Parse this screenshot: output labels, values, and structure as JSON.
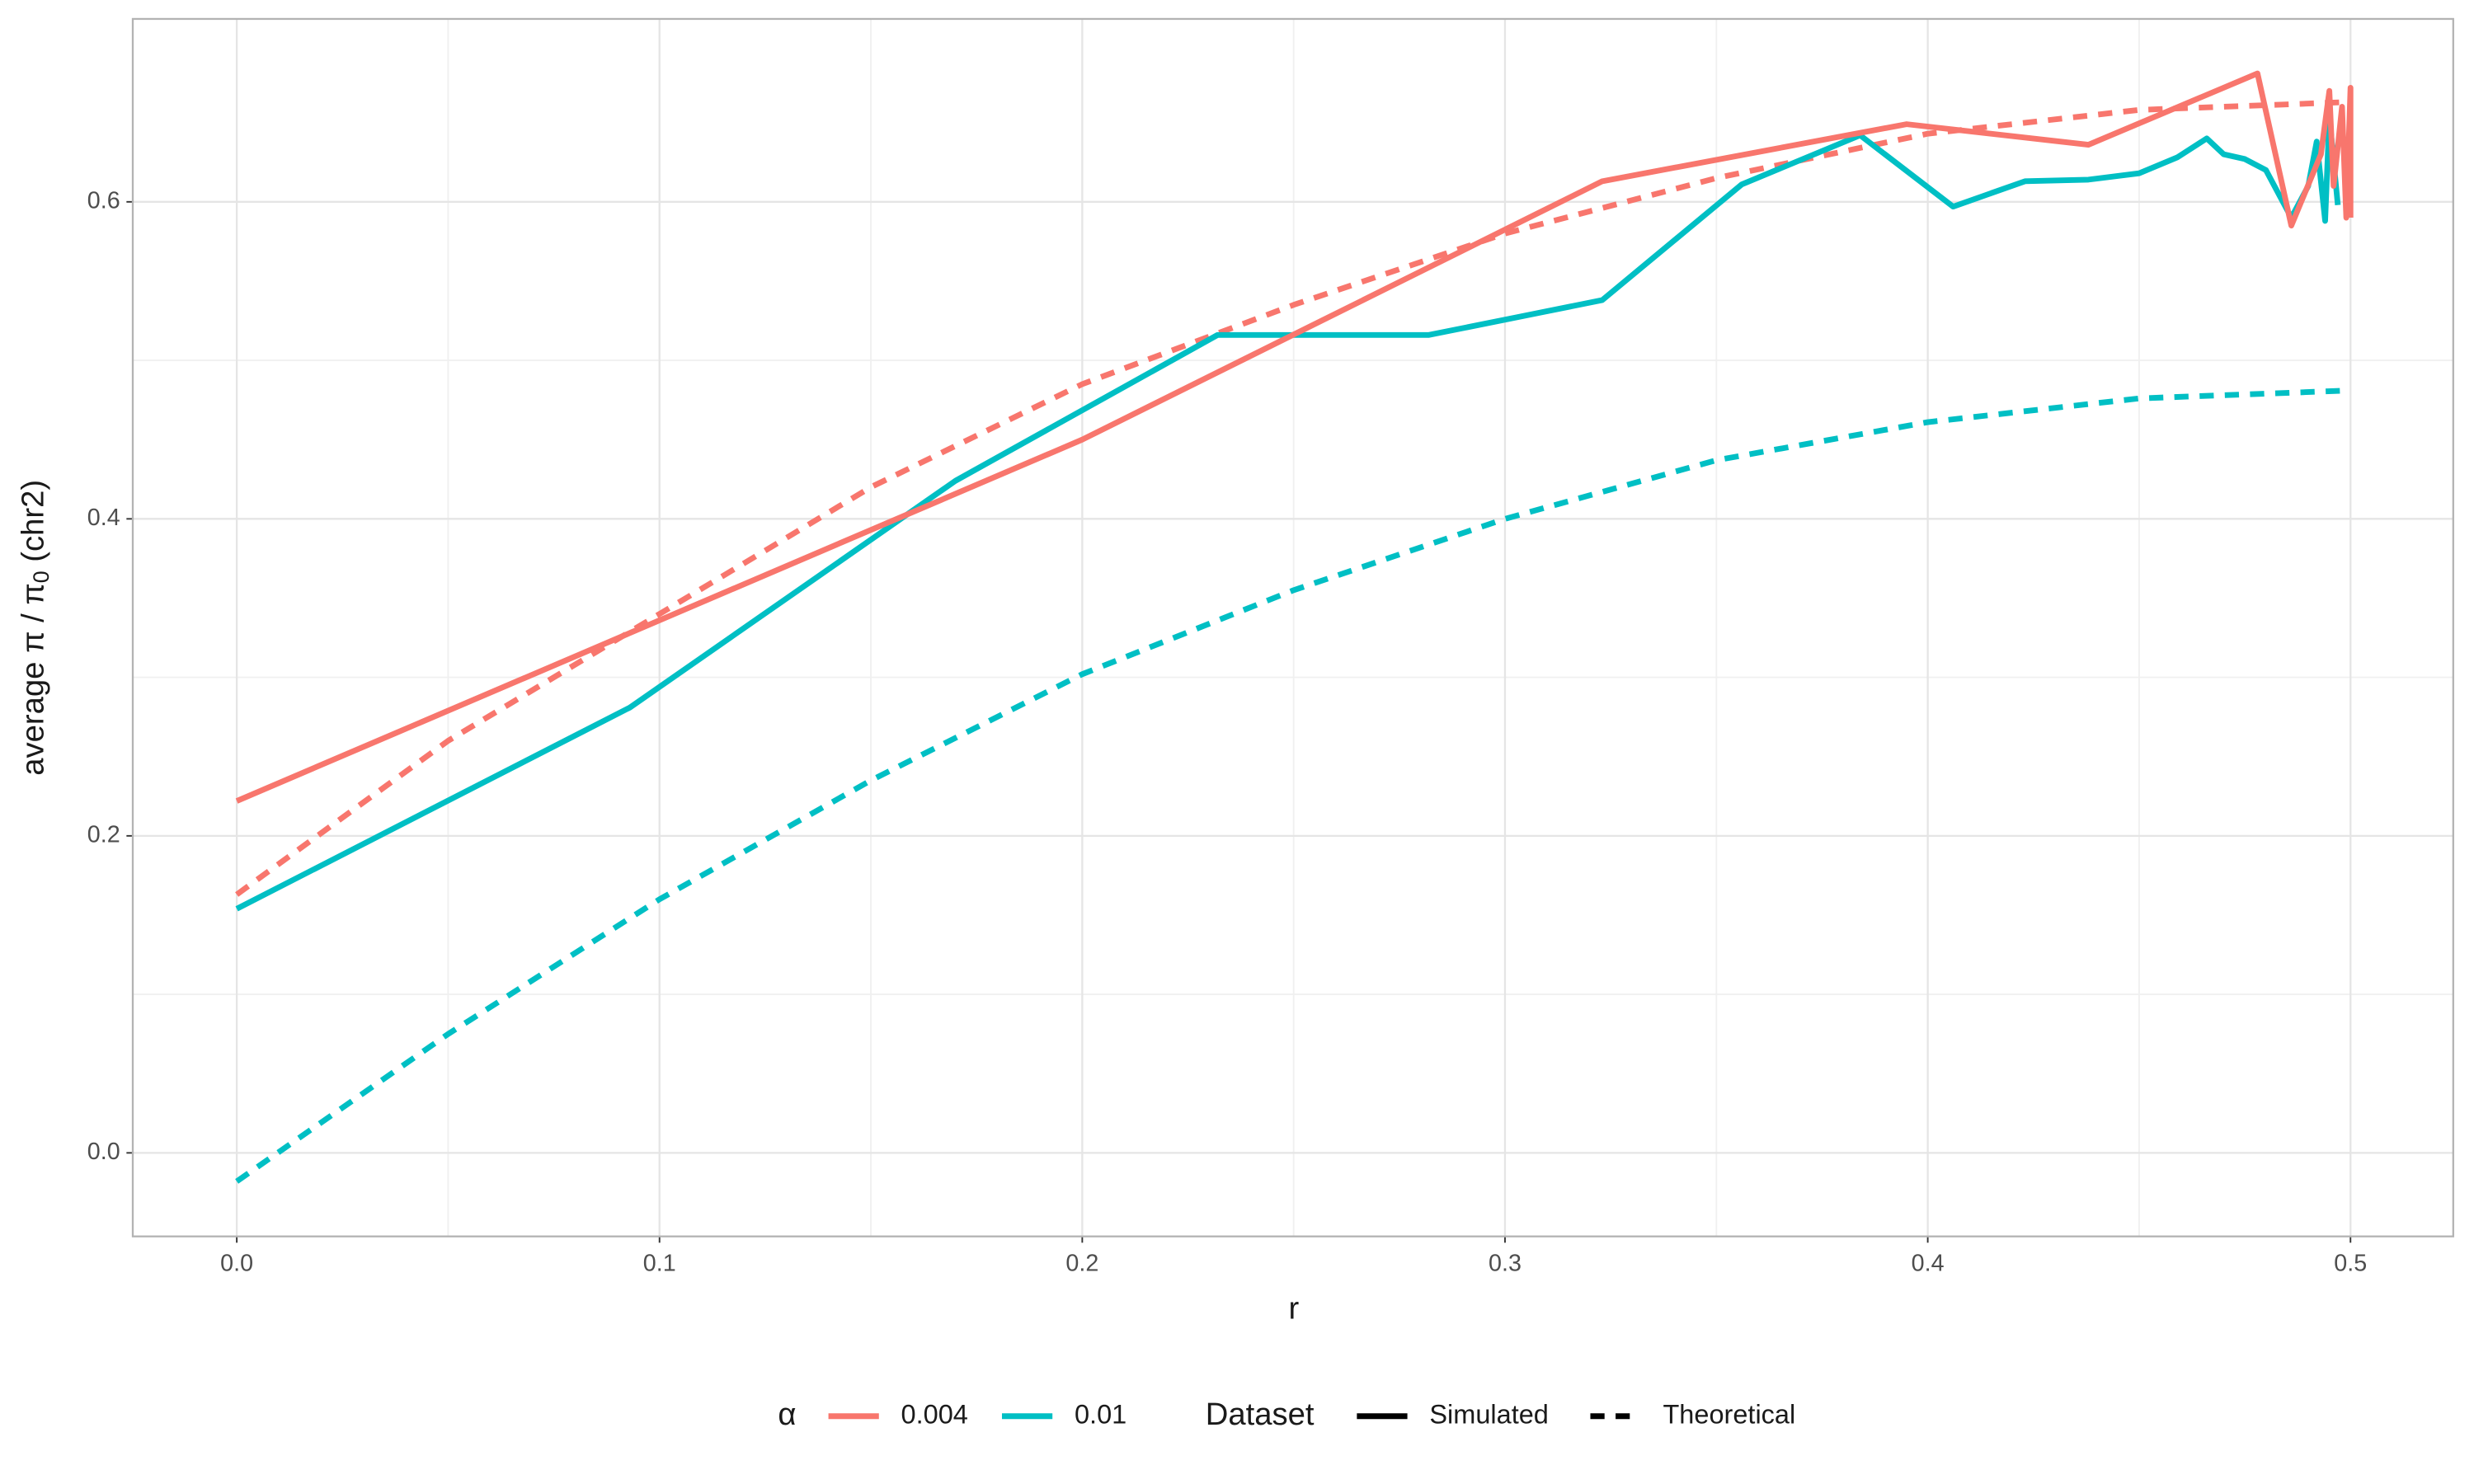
{
  "chart_data": {
    "type": "line",
    "xlabel": "r",
    "ylabel": [
      "average π / π",
      "0",
      " (chr2)"
    ],
    "xlim": [
      -0.0246,
      0.5243
    ],
    "ylim": [
      -0.0527,
      0.7154
    ],
    "xticks": [
      {
        "value": 0,
        "label": "0.0"
      },
      0.1,
      0.2,
      0.3,
      0.4,
      0.5
    ],
    "yticks": [
      {
        "value": 0,
        "label": "0.0"
      },
      0.2,
      0.4,
      0.6
    ],
    "minor_xticks": [
      0.05,
      0.15,
      0.25,
      0.35,
      0.45
    ],
    "minor_yticks": [
      0.1,
      0.3,
      0.5
    ],
    "grid": true,
    "legend_position": "bottom",
    "color_legend": {
      "title": "α",
      "entries": [
        {
          "label": "0.004",
          "color": "#F8766D"
        },
        {
          "label": "0.01",
          "color": "#00BFC4"
        }
      ]
    },
    "linetype_legend": {
      "title": "Dataset",
      "entries": [
        {
          "label": "Simulated",
          "linetype": "solid"
        },
        {
          "label": "Theoretical",
          "linetype": "dashed"
        }
      ]
    },
    "series": [
      {
        "color": "#F8766D",
        "linetype": "dashed",
        "x": [
          0,
          0.05,
          0.1,
          0.15,
          0.2,
          0.25,
          0.3,
          0.35,
          0.4,
          0.45,
          0.5
        ],
        "values": [
          0.163,
          0.26,
          0.34,
          0.42,
          0.485,
          0.535,
          0.58,
          0.615,
          0.643,
          0.658,
          0.663
        ]
      },
      {
        "color": "#00BFC4",
        "linetype": "dashed",
        "x": [
          0,
          0.05,
          0.1,
          0.15,
          0.2,
          0.25,
          0.3,
          0.35,
          0.4,
          0.45,
          0.5
        ],
        "values": [
          -0.018,
          0.075,
          0.16,
          0.235,
          0.302,
          0.355,
          0.4,
          0.437,
          0.461,
          0.476,
          0.481
        ]
      },
      {
        "color": "#00BFC4",
        "linetype": "solid",
        "x": [
          0,
          0.093,
          0.17,
          0.232,
          0.282,
          0.323,
          0.356,
          0.384,
          0.406,
          0.423,
          0.438,
          0.45,
          0.459,
          0.466,
          0.47,
          0.475,
          0.48,
          0.486,
          0.49,
          0.492,
          0.494,
          0.495,
          0.497
        ],
        "values": [
          0.154,
          0.281,
          0.424,
          0.516,
          0.516,
          0.538,
          0.611,
          0.642,
          0.597,
          0.613,
          0.614,
          0.618,
          0.628,
          0.64,
          0.63,
          0.627,
          0.62,
          0.59,
          0.61,
          0.638,
          0.588,
          0.654,
          0.598
        ]
      },
      {
        "color": "#F8766D",
        "linetype": "solid",
        "x": [
          0,
          0.2,
          0.323,
          0.395,
          0.438,
          0.478,
          0.486,
          0.493,
          0.495,
          0.496,
          0.498,
          0.499,
          0.5,
          0.5
        ],
        "values": [
          0.222,
          0.45,
          0.613,
          0.649,
          0.636,
          0.681,
          0.585,
          0.63,
          0.67,
          0.61,
          0.66,
          0.59,
          0.672,
          0.59
        ]
      }
    ]
  }
}
